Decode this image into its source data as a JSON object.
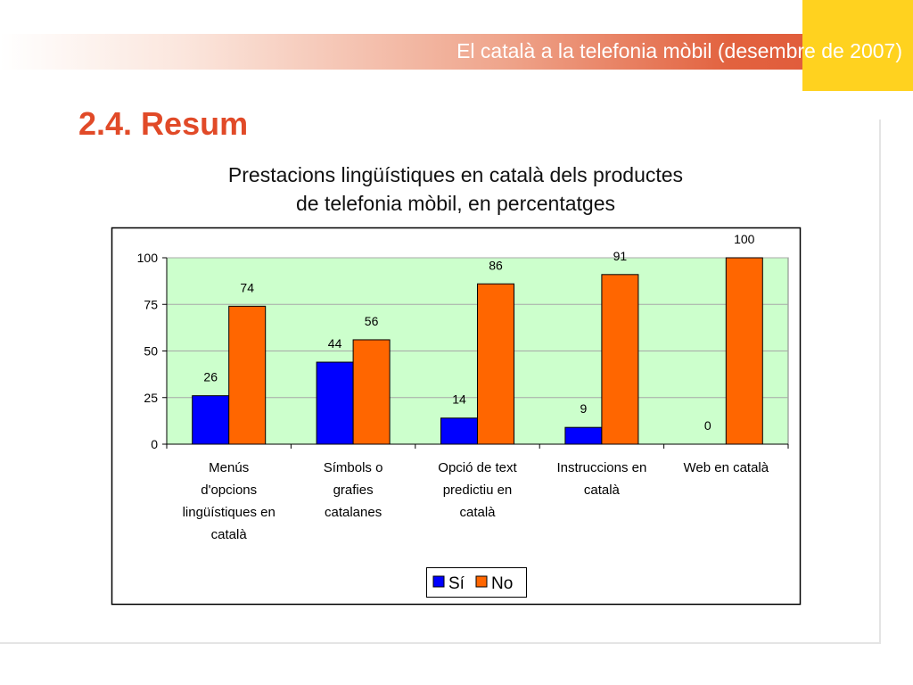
{
  "header": {
    "title": "El català a la telefonia mòbil (desembre de 2007)"
  },
  "section_title": "2.4. Resum",
  "colors": {
    "header_accent": "#e2623f",
    "yellow": "#ffd21f",
    "section_title": "#e14a28",
    "plot_background": "#ccffcc",
    "series_si": "#0000ff",
    "series_no": "#ff6600"
  },
  "chart_data": {
    "type": "bar",
    "title_lines": [
      "Prestacions lingüístiques en català dels productes",
      "de telefonia mòbil, en percentatges"
    ],
    "categories": [
      [
        "Menús",
        "d'opcions",
        "lingüístiques en",
        "català"
      ],
      [
        "Símbols o",
        "grafies",
        "catalanes"
      ],
      [
        "Opció de text",
        "predictiu en",
        "català"
      ],
      [
        "Instruccions en",
        "català"
      ],
      [
        "Web en català"
      ]
    ],
    "series": [
      {
        "name": "Sí",
        "color": "#0000ff",
        "values": [
          26,
          44,
          14,
          9,
          0
        ]
      },
      {
        "name": "No",
        "color": "#ff6600",
        "values": [
          74,
          56,
          86,
          91,
          100
        ]
      }
    ],
    "ylim": [
      0,
      100
    ],
    "yticks": [
      0,
      25,
      50,
      75,
      100
    ],
    "grid": true,
    "legend_position": "bottom",
    "xlabel": "",
    "ylabel": ""
  }
}
